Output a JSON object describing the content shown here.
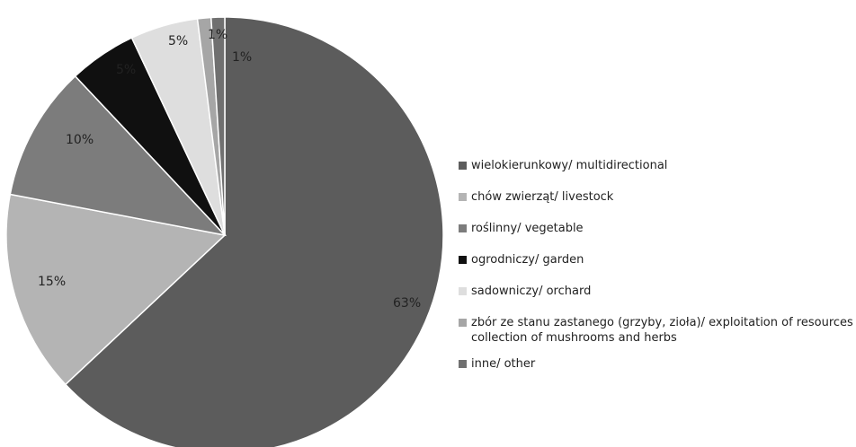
{
  "chart_data": {
    "type": "pie",
    "title": "",
    "slices": [
      {
        "label": "wielokierunkowy/ multidirectional",
        "value": 63,
        "display": "63%",
        "color": "#5c5c5c"
      },
      {
        "label": "chów zwierząt/ livestock",
        "value": 15,
        "display": "15%",
        "color": "#b4b4b4"
      },
      {
        "label": "roślinny/ vegetable",
        "value": 10,
        "display": "10%",
        "color": "#7c7c7c"
      },
      {
        "label": "ogrodniczy/ garden",
        "value": 5,
        "display": "5%",
        "color": "#101010"
      },
      {
        "label": "sadowniczy/ orchard",
        "value": 5,
        "display": "5%",
        "color": "#dedede"
      },
      {
        "label": "zbór ze stanu zastanego (grzyby, zioła)/ exploitation of resources collection of mushrooms and herbs",
        "value": 1,
        "display": "1%",
        "color": "#a6a6a6"
      },
      {
        "label": "inne/ other",
        "value": 1,
        "display": "1%",
        "color": "#707070"
      }
    ],
    "legend_position": "right"
  }
}
